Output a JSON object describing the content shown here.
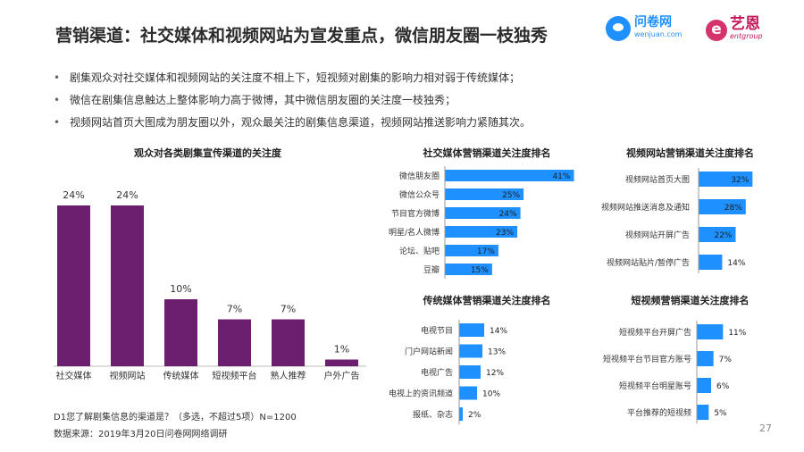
{
  "header": {
    "title": "营销渠道：社交媒体和视频网站为宣发重点，微信朋友圈一枝独秀",
    "logo_wenjuan_cn": "问卷网",
    "logo_wenjuan_en": "wenjuan.com",
    "logo_yien_cn": "艺恩",
    "logo_yien_en": "entgroup"
  },
  "bullets": [
    "剧集观众对社交媒体和视频网站的关注度不相上下，短视频对剧集的影响力相对弱于传统媒体；",
    "微信在剧集信息触达上整体影响力高于微博，其中微信朋友圈的关注度一枝独秀；",
    "视频网站首页大图成为朋友圈以外，观众最关注的剧集信息渠道，视频网站推送影响力紧随其次。"
  ],
  "footer": {
    "question": "D1您了解剧集信息的渠道是？（多选，不超过5项）N=1200",
    "source": "数据来源：2019年3月20日问卷网网络调研"
  },
  "page_number": "27",
  "colors": {
    "purple": "#6b1f6e",
    "blue": "#1e90ff"
  },
  "chart_data": [
    {
      "type": "bar",
      "title": "观众对各类剧集宣传渠道的关注度",
      "categories": [
        "社交媒体",
        "视频网站",
        "传统媒体",
        "短视频平台",
        "熟人推荐",
        "户外广告"
      ],
      "values": [
        24,
        24,
        10,
        7,
        7,
        1
      ],
      "value_labels": [
        "24%",
        "24%",
        "10%",
        "7%",
        "7%",
        "1%"
      ],
      "unit": "%",
      "ylim": [
        0,
        28
      ],
      "color": "#6b1f6e"
    },
    {
      "type": "bar",
      "orientation": "horizontal",
      "title": "社交媒体营销渠道关注度排名",
      "categories": [
        "微信朋友圈",
        "微信公众号",
        "节目官方微博",
        "明星/名人微博",
        "论坛、贴吧",
        "豆瓣"
      ],
      "values": [
        41,
        25,
        24,
        23,
        17,
        15
      ],
      "value_labels": [
        "41%",
        "25%",
        "24%",
        "23%",
        "17%",
        "15%"
      ],
      "xlim": [
        0,
        42
      ],
      "color": "#1e90ff"
    },
    {
      "type": "bar",
      "orientation": "horizontal",
      "title": "视频网站营销渠道关注度排名",
      "categories": [
        "视频网站首页大图",
        "视频网站推送消息及通知",
        "视频网站开屏广告",
        "视频网站贴片/暂停广告"
      ],
      "values": [
        32,
        28,
        22,
        14
      ],
      "value_labels": [
        "32%",
        "28%",
        "22%",
        "14%"
      ],
      "xlim": [
        0,
        35
      ],
      "color": "#1e90ff"
    },
    {
      "type": "bar",
      "orientation": "horizontal",
      "title": "传统媒体营销渠道关注度排名",
      "categories": [
        "电视节目",
        "门户网站新闻",
        "电视广告",
        "电视上的资讯频道",
        "报纸、杂志"
      ],
      "values": [
        14,
        13,
        12,
        10,
        2
      ],
      "value_labels": [
        "14%",
        "13%",
        "12%",
        "10%",
        "2%"
      ],
      "xlim": [
        0,
        15
      ],
      "color": "#1e90ff"
    },
    {
      "type": "bar",
      "orientation": "horizontal",
      "title": "短视频营销渠道关注度排名",
      "categories": [
        "短视频平台开屏广告",
        "短视频平台节目官方账号",
        "短视频平台明星账号",
        "平台推荐的短视频"
      ],
      "values": [
        11,
        7,
        6,
        5
      ],
      "value_labels": [
        "11%",
        "7%",
        "6%",
        "5%"
      ],
      "xlim": [
        0,
        30
      ],
      "color": "#1e90ff"
    }
  ]
}
